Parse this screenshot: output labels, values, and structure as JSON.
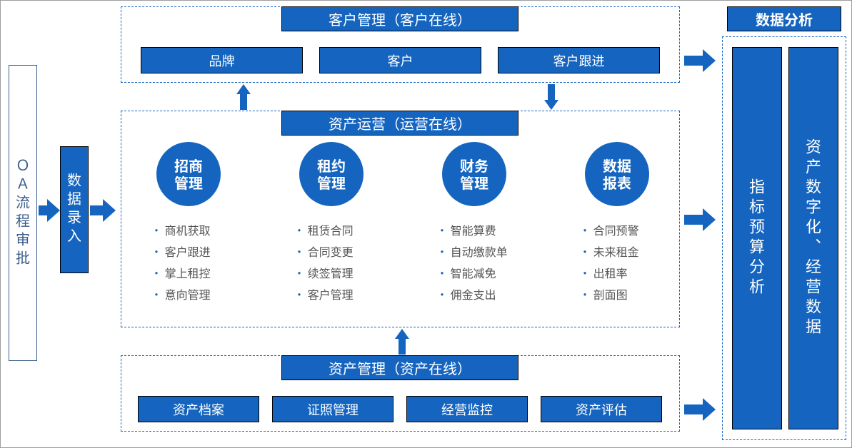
{
  "layout": {
    "type": "flowchart",
    "primary_color": "#1565c0",
    "text_on_primary": "#ffffff",
    "border_color": "#000000",
    "dashed_border_color": "#1565c0",
    "bullet_text_color": "#555555",
    "bullet_marker_color": "#1565c0",
    "circle_fontsize": 20,
    "title_fontsize": 20,
    "item_fontsize": 18,
    "vertical_fontsize": 20
  },
  "left": {
    "oa_label": "ＯＡ流程审批",
    "input_label": "数据录入"
  },
  "top": {
    "title": "客户管理（客户在线）",
    "items": [
      "品牌",
      "客户",
      "客户跟进"
    ]
  },
  "middle": {
    "title": "资产运营（运营在线）",
    "circles": [
      "招商管理",
      "租约管理",
      "财务管理",
      "数据报表"
    ],
    "columns": [
      [
        "商机获取",
        "客户跟进",
        "掌上租控",
        "意向管理"
      ],
      [
        "租赁合同",
        "合同变更",
        "续签管理",
        "客户管理"
      ],
      [
        "智能算费",
        "自动缴款单",
        "智能减免",
        "佣金支出"
      ],
      [
        "合同预警",
        "未来租金",
        "出租率",
        "剖面图"
      ]
    ]
  },
  "bottom": {
    "title": "资产管理（资产在线）",
    "items": [
      "资产档案",
      "证照管理",
      "经营监控",
      "资产评估"
    ]
  },
  "right": {
    "header": "数据分析",
    "col1": "指标预算分析",
    "col2": "资产数字化、经营数据"
  }
}
